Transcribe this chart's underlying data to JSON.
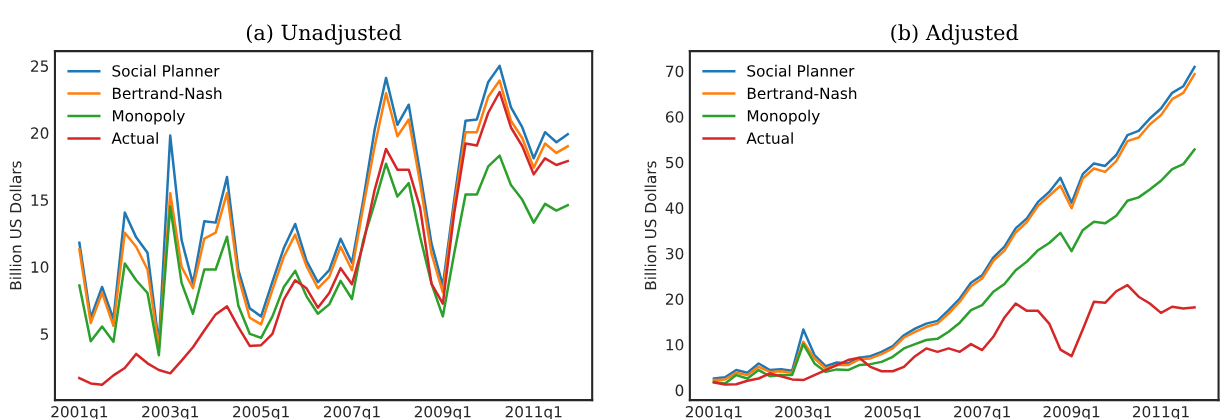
{
  "chart_data": [
    {
      "type": "line",
      "title": "(a) Unadjusted",
      "ylabel": "Billion US Dollars",
      "legend": "top left",
      "grid": false,
      "categories": [
        "2001q1",
        null,
        null,
        null,
        null,
        null,
        null,
        null,
        "2003q1",
        null,
        null,
        null,
        null,
        null,
        null,
        null,
        "2005q1",
        null,
        null,
        null,
        null,
        null,
        null,
        null,
        "2007q1",
        null,
        null,
        null,
        null,
        null,
        null,
        null,
        "2009q1",
        null,
        null,
        null,
        null,
        null,
        null,
        null,
        "2011q1",
        null,
        null,
        null
      ],
      "ylim": [
        0.05,
        26.1
      ],
      "yticks": [
        5,
        10,
        15,
        20,
        25
      ],
      "series": [
        {
          "name": "Social Planner",
          "color": "#1f77b4",
          "values": [
            11.8,
            6.2,
            8.5,
            6.1,
            14.05,
            12.2,
            11.05,
            4.25,
            19.8,
            12.0,
            8.75,
            13.4,
            13.3,
            16.7,
            9.75,
            6.9,
            6.3,
            8.9,
            11.4,
            13.2,
            10.45,
            8.85,
            9.75,
            12.1,
            10.3,
            15.0,
            20.25,
            24.1,
            20.6,
            22.1,
            17.0,
            11.75,
            8.6,
            15.0,
            20.9,
            21.0,
            23.8,
            25.0,
            21.9,
            20.4,
            18.1,
            20.05,
            19.3,
            19.9
          ]
        },
        {
          "name": "Bertrand-Nash",
          "color": "#ff7f0e",
          "values": [
            11.3,
            5.8,
            8.05,
            5.6,
            12.55,
            11.5,
            9.8,
            4.0,
            15.5,
            10.0,
            8.4,
            12.1,
            12.55,
            15.5,
            9.25,
            6.2,
            5.7,
            8.3,
            10.75,
            12.4,
            10.05,
            8.4,
            9.25,
            11.5,
            9.75,
            14.5,
            19.0,
            22.95,
            19.75,
            21.0,
            16.25,
            11.0,
            8.1,
            14.5,
            20.05,
            20.05,
            22.7,
            23.9,
            20.9,
            19.6,
            17.4,
            19.2,
            18.5,
            19.0
          ]
        },
        {
          "name": "Monopoly",
          "color": "#2ca02c",
          "values": [
            8.6,
            4.45,
            5.55,
            4.4,
            10.25,
            9.0,
            8.05,
            3.4,
            14.5,
            8.8,
            6.5,
            9.8,
            9.8,
            12.25,
            7.1,
            5.0,
            4.7,
            6.3,
            8.5,
            9.7,
            7.8,
            6.5,
            7.2,
            8.95,
            7.6,
            12.0,
            14.75,
            17.7,
            15.25,
            16.25,
            12.25,
            8.75,
            6.3,
            11.0,
            15.4,
            15.4,
            17.5,
            18.3,
            16.1,
            15.0,
            13.3,
            14.7,
            14.2,
            14.6
          ]
        },
        {
          "name": "Actual",
          "color": "#d62728",
          "values": [
            1.7,
            1.3,
            1.2,
            1.9,
            2.45,
            3.5,
            2.8,
            2.3,
            2.05,
            3.0,
            4.0,
            5.25,
            6.45,
            7.05,
            5.5,
            4.1,
            4.15,
            5.0,
            7.55,
            9.0,
            8.4,
            6.95,
            8.05,
            9.9,
            8.7,
            11.75,
            15.75,
            18.8,
            17.25,
            17.25,
            14.4,
            8.75,
            7.25,
            14.0,
            19.2,
            19.05,
            21.5,
            23.05,
            20.4,
            19.0,
            16.9,
            18.1,
            17.6,
            17.9
          ]
        }
      ]
    },
    {
      "type": "line",
      "title": "(b) Adjusted",
      "ylabel": "Billion US Dollars",
      "legend": "top left",
      "grid": false,
      "categories": [
        "2001q1",
        null,
        null,
        null,
        null,
        null,
        null,
        null,
        "2003q1",
        null,
        null,
        null,
        null,
        null,
        null,
        null,
        "2005q1",
        null,
        null,
        null,
        null,
        null,
        null,
        null,
        "2007q1",
        null,
        null,
        null,
        null,
        null,
        null,
        null,
        "2009q1",
        null,
        null,
        null,
        null,
        null,
        null,
        null,
        "2011q1",
        null,
        null,
        null
      ],
      "ylim": [
        -2.2,
        74.4
      ],
      "yticks": [
        0,
        10,
        20,
        30,
        40,
        50,
        60,
        70
      ],
      "series": [
        {
          "name": "Social Planner",
          "color": "#1f77b4",
          "values": [
            2.55,
            2.8,
            4.4,
            3.8,
            5.85,
            4.4,
            4.6,
            4.25,
            13.3,
            7.7,
            5.25,
            6.05,
            5.85,
            7.1,
            7.45,
            8.4,
            9.65,
            12.05,
            13.5,
            14.6,
            15.2,
            17.55,
            20.1,
            23.55,
            25.2,
            29.1,
            31.5,
            35.5,
            37.7,
            41.3,
            43.5,
            46.6,
            41.1,
            47.4,
            49.75,
            49.2,
            51.6,
            55.95,
            56.9,
            59.6,
            61.8,
            65.25,
            66.7,
            70.95
          ]
        },
        {
          "name": "Bertrand-Nash",
          "color": "#ff7f0e",
          "values": [
            2.2,
            2.35,
            3.8,
            3.3,
            5.1,
            4.0,
            4.15,
            3.8,
            10.6,
            6.95,
            4.75,
            5.5,
            5.5,
            6.75,
            6.95,
            7.9,
            9.15,
            11.55,
            12.8,
            13.9,
            14.6,
            16.8,
            19.4,
            22.8,
            24.5,
            28.4,
            30.6,
            34.6,
            36.9,
            40.45,
            42.65,
            44.85,
            39.9,
            46.45,
            48.65,
            47.9,
            50.25,
            54.65,
            55.45,
            58.3,
            60.35,
            63.85,
            65.25,
            69.35
          ]
        },
        {
          "name": "Monopoly",
          "color": "#2ca02c",
          "values": [
            1.8,
            1.45,
            3.3,
            2.55,
            4.4,
            3.05,
            3.3,
            3.3,
            10.1,
            5.85,
            4.0,
            4.55,
            4.4,
            5.5,
            5.7,
            6.2,
            7.3,
            9.15,
            10.1,
            11.0,
            11.25,
            12.8,
            14.8,
            17.55,
            18.65,
            21.6,
            23.3,
            26.3,
            28.2,
            30.7,
            32.3,
            34.5,
            30.5,
            35.1,
            36.95,
            36.6,
            38.25,
            41.55,
            42.3,
            44.05,
            45.95,
            48.5,
            49.6,
            52.8
          ]
        },
        {
          "name": "Actual",
          "color": "#d62728",
          "values": [
            1.7,
            1.25,
            1.3,
            2.05,
            2.55,
            3.65,
            3.05,
            2.35,
            2.2,
            3.3,
            4.4,
            5.5,
            6.6,
            7.1,
            5.1,
            4.15,
            4.15,
            5.1,
            7.45,
            9.15,
            8.4,
            9.15,
            8.4,
            10.1,
            8.8,
            11.7,
            15.95,
            19.0,
            17.4,
            17.4,
            14.6,
            8.9,
            7.45,
            13.3,
            19.4,
            19.15,
            21.7,
            23.05,
            20.5,
            19.0,
            16.95,
            18.3,
            17.9,
            18.15
          ]
        }
      ]
    }
  ]
}
